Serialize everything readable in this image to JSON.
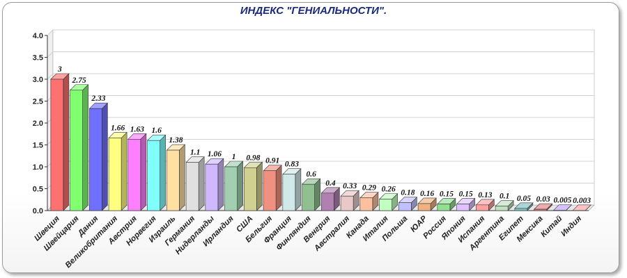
{
  "chart_data": {
    "type": "bar",
    "title": "ИНДЕКС \"ГЕНИАЛЬНОСТИ\".",
    "xlabel": "",
    "ylabel": "",
    "ylim": [
      0,
      4.0
    ],
    "yticks": [
      "0.0",
      "0.5",
      "1.0",
      "1.5",
      "2.0",
      "2.5",
      "3.0",
      "3.5",
      "4.0"
    ],
    "grid": true,
    "categories": [
      "Швеция",
      "Швейцария",
      "Дания",
      "Великобритания",
      "Австрия",
      "Норвегия",
      "Израиль",
      "Германия",
      "Нидерланды",
      "Ирландия",
      "США",
      "Бельгия",
      "Франция",
      "Финляндия",
      "Венгрия",
      "Австралия",
      "Канада",
      "Италия",
      "Польша",
      "ЮАР",
      "Россия",
      "Япония",
      "Испания",
      "Аргентина",
      "Египет",
      "Мексика",
      "Китай",
      "Индия"
    ],
    "values": [
      3,
      2.75,
      2.33,
      1.66,
      1.63,
      1.6,
      1.38,
      1.1,
      1.06,
      1,
      0.98,
      0.91,
      0.83,
      0.6,
      0.4,
      0.33,
      0.29,
      0.26,
      0.18,
      0.16,
      0.15,
      0.15,
      0.13,
      0.1,
      0.05,
      0.03,
      0.005,
      0.003
    ],
    "value_labels": [
      "3",
      "2.75",
      "2.33",
      "1.66",
      "1.63",
      "1.6",
      "1.38",
      "1.1",
      "1.06",
      "1",
      "0.98",
      "0.91",
      "0.83",
      "0.6",
      "0.4",
      "0.33",
      "0.29",
      "0.26",
      "0.18",
      "0.16",
      "0.15",
      "0.15",
      "0.13",
      "0.1",
      "0.05",
      "0.03",
      "0.005",
      "0.003"
    ],
    "colors": [
      "#ff7070",
      "#80ff70",
      "#7070ff",
      "#ffff80",
      "#ff80ff",
      "#80ffff",
      "#ffe0a0",
      "#e0e0e0",
      "#d0b8ff",
      "#a0d0b0",
      "#d0d090",
      "#f09080",
      "#d0e8e8",
      "#90c090",
      "#b080b0",
      "#e8c8c8",
      "#ffc0a0",
      "#c0ffc0",
      "#c0c0ff",
      "#f0b080",
      "#90e090",
      "#e0c0ff",
      "#ffa0a0",
      "#c0e0c0",
      "#80c0c0",
      "#e08080",
      "#c0a0ff",
      "#ffa0a0"
    ]
  }
}
